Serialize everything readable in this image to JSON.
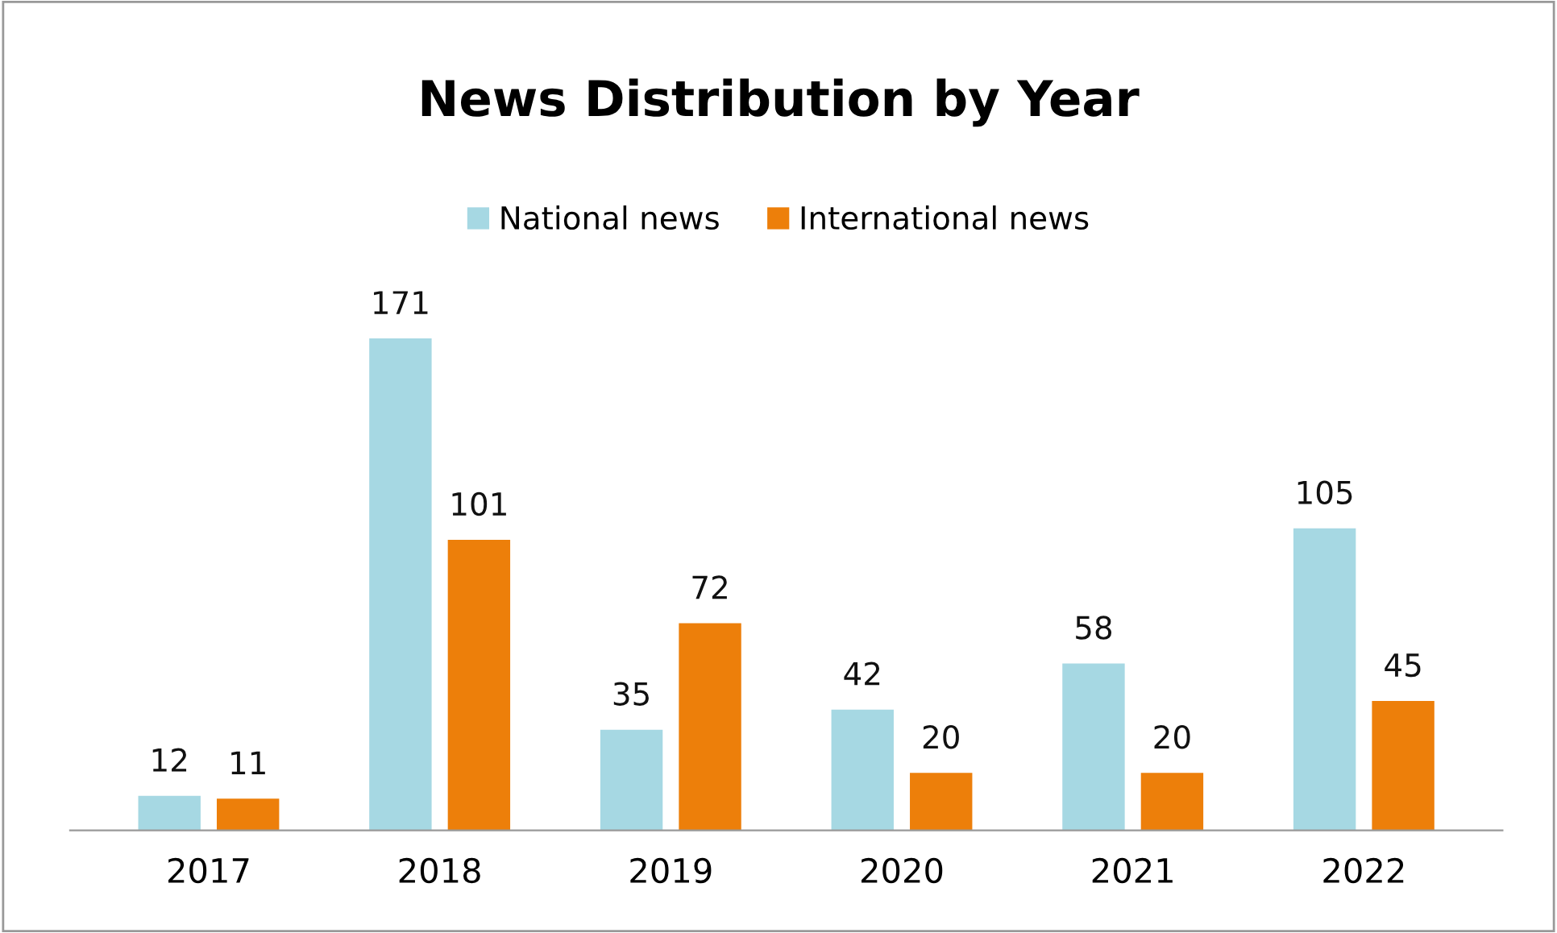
{
  "chart_data": {
    "type": "bar",
    "title": "News Distribution by Year",
    "categories": [
      "2017",
      "2018",
      "2019",
      "2020",
      "2021",
      "2022"
    ],
    "series": [
      {
        "name": "National news",
        "color": "#a6d8e3",
        "values": [
          12,
          171,
          35,
          42,
          58,
          105
        ]
      },
      {
        "name": "International news",
        "color": "#ed7f0a",
        "values": [
          11,
          101,
          72,
          20,
          20,
          45
        ]
      }
    ],
    "data_labels": true,
    "legend": "top",
    "grid": false,
    "tick_labels": "x"
  }
}
